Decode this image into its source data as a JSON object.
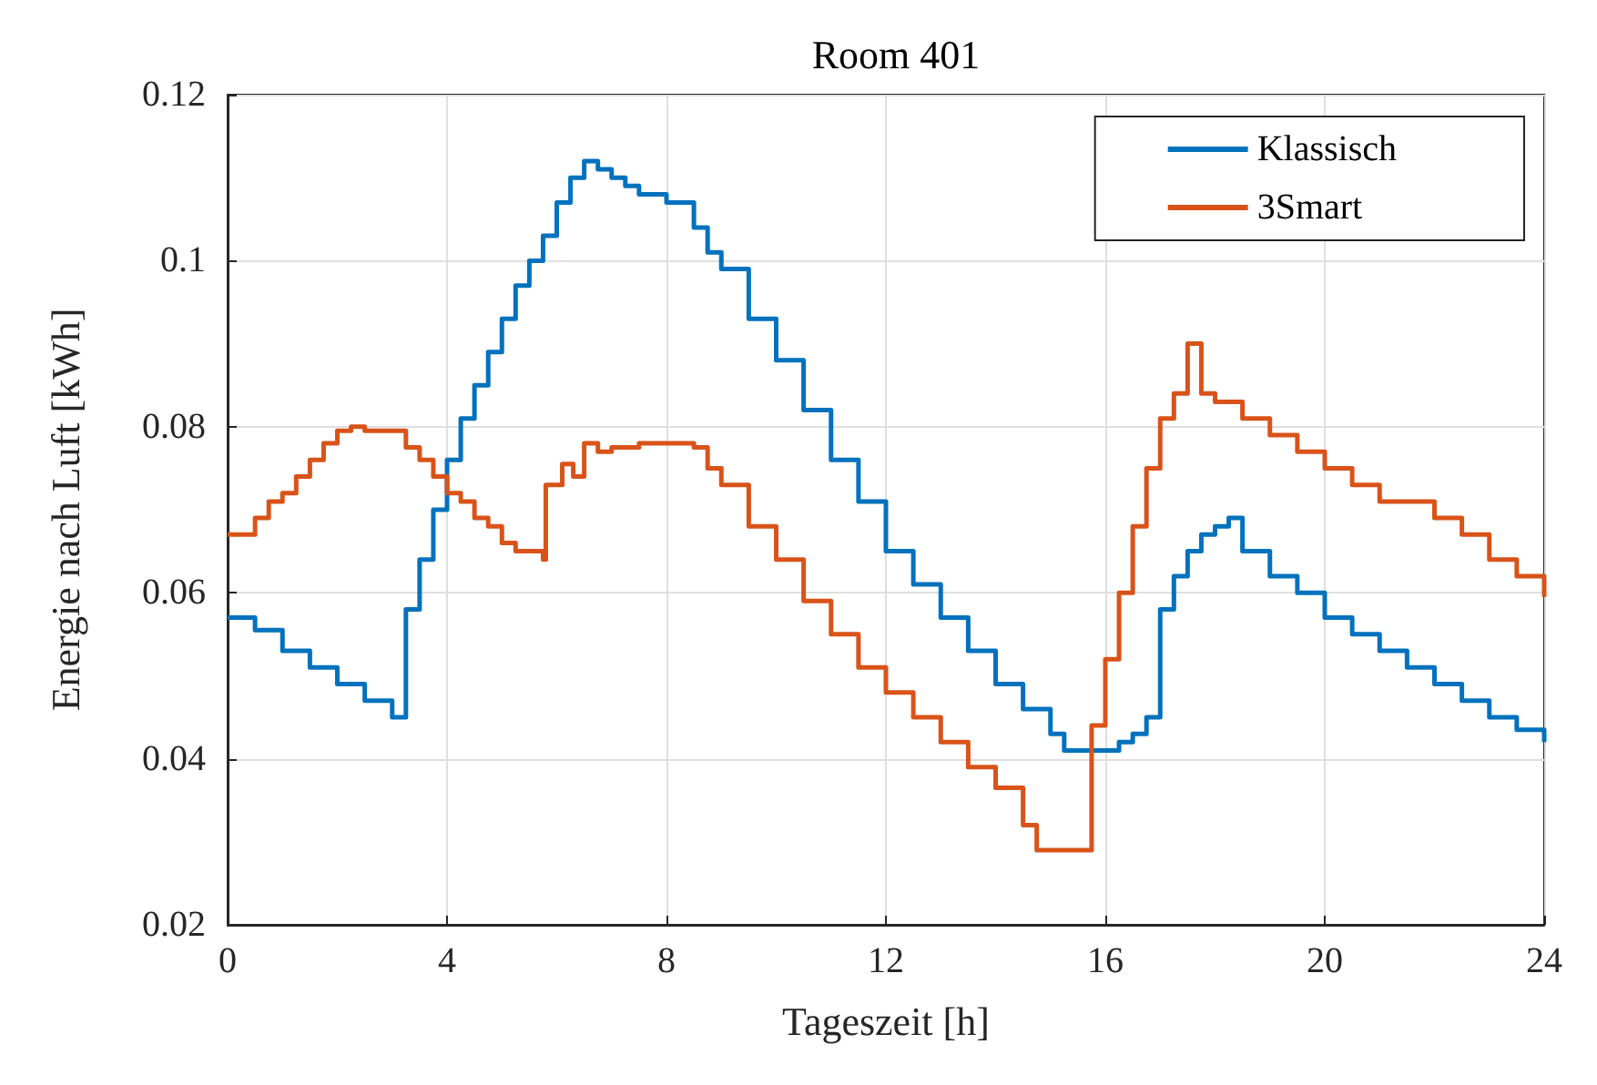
{
  "chart_data": {
    "type": "step",
    "title": "Room 401",
    "xlabel": "Tageszeit [h]",
    "ylabel": "Energie nach Luft [kWh]",
    "xlim": [
      0,
      24
    ],
    "xticks": [
      0,
      4,
      8,
      12,
      16,
      20,
      24
    ],
    "ylim": [
      0.02,
      0.12
    ],
    "yticks": [
      0.02,
      0.04,
      0.06,
      0.08,
      0.1,
      0.12
    ],
    "grid": true,
    "legend": "top right",
    "line_style": "solid",
    "marker": "none",
    "series": [
      {
        "name": "Klassisch",
        "color": "#0072bd",
        "x": [
          0,
          0.5,
          1,
          1.5,
          2,
          2.5,
          3,
          3.25,
          3.5,
          3.75,
          4,
          4.25,
          4.5,
          4.75,
          5,
          5.25,
          5.5,
          5.75,
          6,
          6.25,
          6.5,
          6.75,
          7,
          7.25,
          7.5,
          8,
          8.5,
          8.75,
          9,
          9.5,
          10,
          10.5,
          11,
          11.5,
          12,
          12.5,
          13,
          13.5,
          14,
          14.5,
          15,
          15.25,
          15.75,
          16,
          16.25,
          16.5,
          16.75,
          17,
          17.25,
          17.5,
          17.75,
          18,
          18.25,
          18.5,
          19,
          19.5,
          20,
          20.5,
          21,
          21.5,
          22,
          22.5,
          23,
          23.5,
          24
        ],
        "values": [
          0.057,
          0.0555,
          0.053,
          0.051,
          0.049,
          0.047,
          0.045,
          0.058,
          0.064,
          0.07,
          0.076,
          0.081,
          0.085,
          0.089,
          0.093,
          0.097,
          0.1,
          0.103,
          0.107,
          0.11,
          0.112,
          0.111,
          0.11,
          0.109,
          0.108,
          0.107,
          0.104,
          0.101,
          0.099,
          0.093,
          0.088,
          0.082,
          0.076,
          0.071,
          0.065,
          0.061,
          0.057,
          0.053,
          0.049,
          0.046,
          0.043,
          0.041,
          0.041,
          0.041,
          0.042,
          0.043,
          0.045,
          0.058,
          0.062,
          0.065,
          0.067,
          0.068,
          0.069,
          0.065,
          0.062,
          0.06,
          0.057,
          0.055,
          0.053,
          0.051,
          0.049,
          0.047,
          0.045,
          0.0435,
          0.042
        ]
      },
      {
        "name": "3Smart",
        "color": "#d95319",
        "x": [
          0,
          0.5,
          0.75,
          1,
          1.25,
          1.5,
          1.75,
          2,
          2.25,
          2.5,
          3.25,
          3.5,
          3.75,
          4,
          4.25,
          4.5,
          4.75,
          5,
          5.25,
          5.75,
          5.8,
          6.1,
          6.3,
          6.5,
          6.75,
          7,
          7.5,
          8,
          8.5,
          8.75,
          9,
          9.5,
          10,
          10.5,
          11,
          11.5,
          12,
          12.5,
          13,
          13.5,
          14,
          14.5,
          14.75,
          15.5,
          15.75,
          16,
          16.25,
          16.5,
          16.75,
          17,
          17.25,
          17.5,
          17.75,
          18,
          18.5,
          19,
          19.5,
          20,
          20.5,
          21,
          21.5,
          22,
          22.5,
          23,
          23.5,
          24
        ],
        "values": [
          0.067,
          0.069,
          0.071,
          0.072,
          0.074,
          0.076,
          0.078,
          0.0795,
          0.08,
          0.0795,
          0.0775,
          0.076,
          0.074,
          0.072,
          0.071,
          0.069,
          0.068,
          0.066,
          0.065,
          0.064,
          0.073,
          0.0755,
          0.074,
          0.078,
          0.077,
          0.0775,
          0.078,
          0.078,
          0.0775,
          0.075,
          0.073,
          0.068,
          0.064,
          0.059,
          0.055,
          0.051,
          0.048,
          0.045,
          0.042,
          0.039,
          0.0365,
          0.032,
          0.029,
          0.029,
          0.044,
          0.052,
          0.06,
          0.068,
          0.075,
          0.081,
          0.084,
          0.09,
          0.084,
          0.083,
          0.081,
          0.079,
          0.077,
          0.075,
          0.073,
          0.071,
          0.071,
          0.069,
          0.067,
          0.064,
          0.062,
          0.0595
        ]
      }
    ]
  }
}
